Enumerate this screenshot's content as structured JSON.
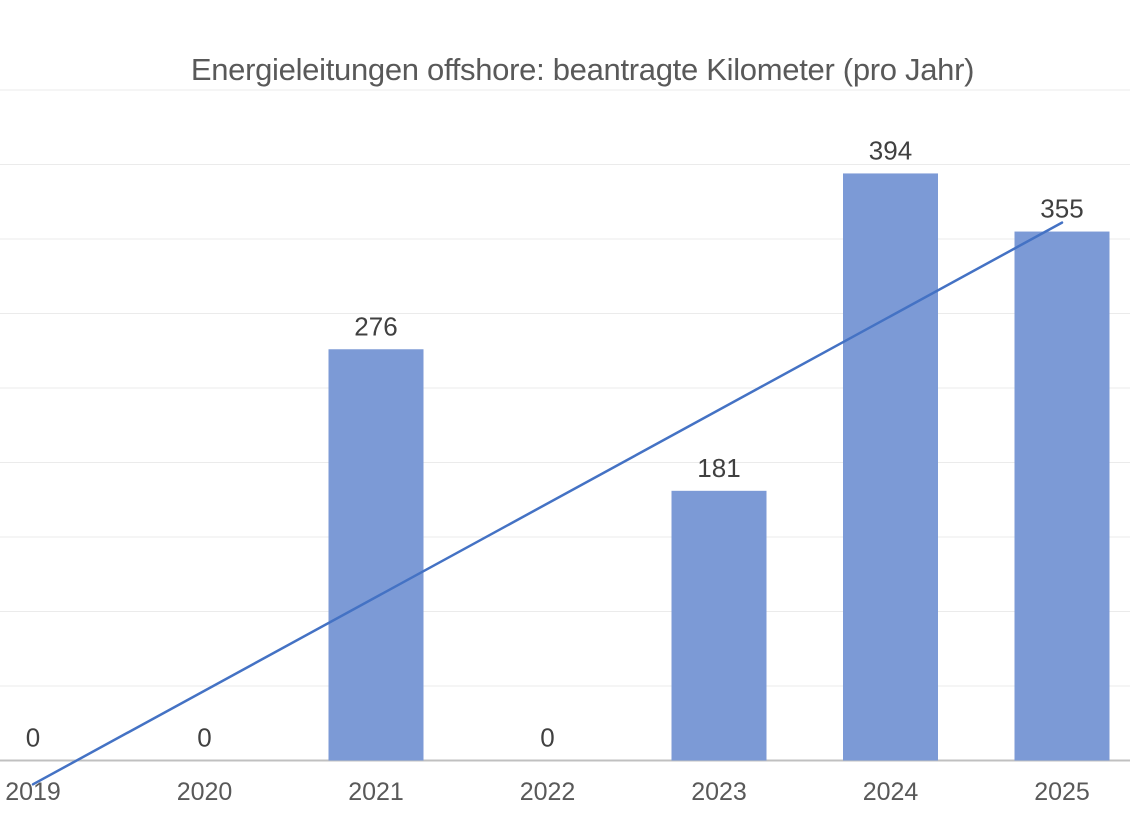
{
  "chart_data": {
    "type": "bar",
    "title": "Energieleitungen offshore: beantragte Kilometer (pro Jahr)",
    "xlabel": "",
    "ylabel": "",
    "categories": [
      "2019",
      "2020",
      "2021",
      "2022",
      "2023",
      "2024",
      "2025"
    ],
    "values": [
      0,
      0,
      276,
      0,
      181,
      394,
      355
    ],
    "data_labels": [
      "0",
      "0",
      "276",
      "0",
      "181",
      "394",
      "355"
    ],
    "ylim": [
      0,
      450
    ],
    "gridline_interval": 50,
    "grid": "horizontal light gridlines, no y-axis tick labels",
    "legend": "none",
    "trendline": {
      "type": "linear",
      "value_at_first_category": -16,
      "value_at_last_category": 361
    },
    "colors": {
      "bar": "#7C9AD6",
      "trendline": "#4472C4",
      "gridline": "#EBEBEB",
      "axis_line": "#C0C0C0",
      "title_text": "#595959",
      "axis_text": "#595959",
      "data_label_text": "#404040",
      "background": "#FFFFFF"
    }
  }
}
